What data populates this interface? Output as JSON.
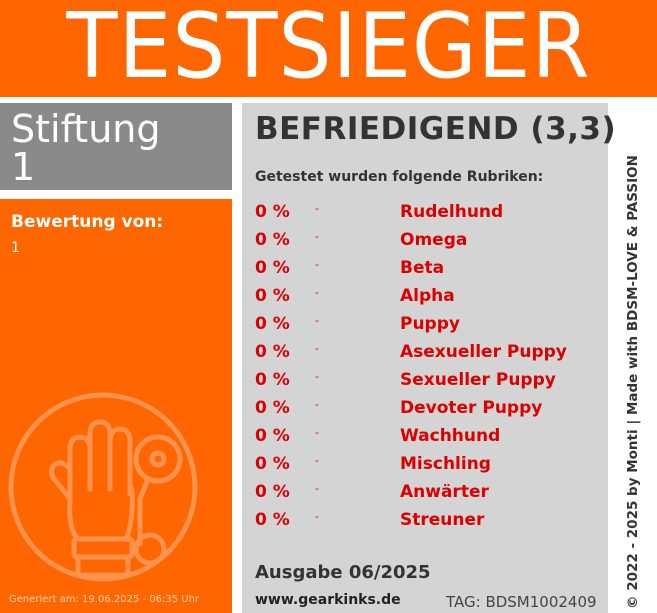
{
  "banner": {
    "title": "TESTSIEGER"
  },
  "left": {
    "line1": "Stiftung",
    "line2": "1",
    "bewertung_label": "Bewertung von:",
    "bewertung_value": "1",
    "generated": "Generiert am: 19.06.2025 - 06:35 Uhr"
  },
  "right": {
    "rating": "BEFRIEDIGEND (3,3)",
    "intro": "Getestet wurden folgende Rubriken:",
    "rows": [
      {
        "pct": "0 %",
        "dash": "-",
        "name": "Rudelhund"
      },
      {
        "pct": "0 %",
        "dash": "-",
        "name": "Omega"
      },
      {
        "pct": "0 %",
        "dash": "-",
        "name": "Beta"
      },
      {
        "pct": "0 %",
        "dash": "-",
        "name": "Alpha"
      },
      {
        "pct": "0 %",
        "dash": "-",
        "name": "Puppy"
      },
      {
        "pct": "0 %",
        "dash": "-",
        "name": "Asexueller Puppy"
      },
      {
        "pct": "0 %",
        "dash": "-",
        "name": "Sexueller Puppy"
      },
      {
        "pct": "0 %",
        "dash": "-",
        "name": "Devoter Puppy"
      },
      {
        "pct": "0 %",
        "dash": "-",
        "name": "Wachhund"
      },
      {
        "pct": "0 %",
        "dash": "-",
        "name": "Mischling"
      },
      {
        "pct": "0 %",
        "dash": "-",
        "name": "Anwärter"
      },
      {
        "pct": "0 %",
        "dash": "-",
        "name": "Streuner"
      }
    ],
    "ausgabe": "Ausgabe 06/2025",
    "website": "www.gearkinks.de",
    "tag": "TAG: BDSM1002409"
  },
  "vertical_text": "© 2022 - 2025 by Monti | Made with BDSM-LOVE & PASSION",
  "colors": {
    "orange": "#ff6600",
    "gray": "#8a8a8a",
    "panel": "#d4d4d4",
    "red": "#dd0000"
  },
  "icons": {
    "logo": "glove-handcuff-logo"
  }
}
